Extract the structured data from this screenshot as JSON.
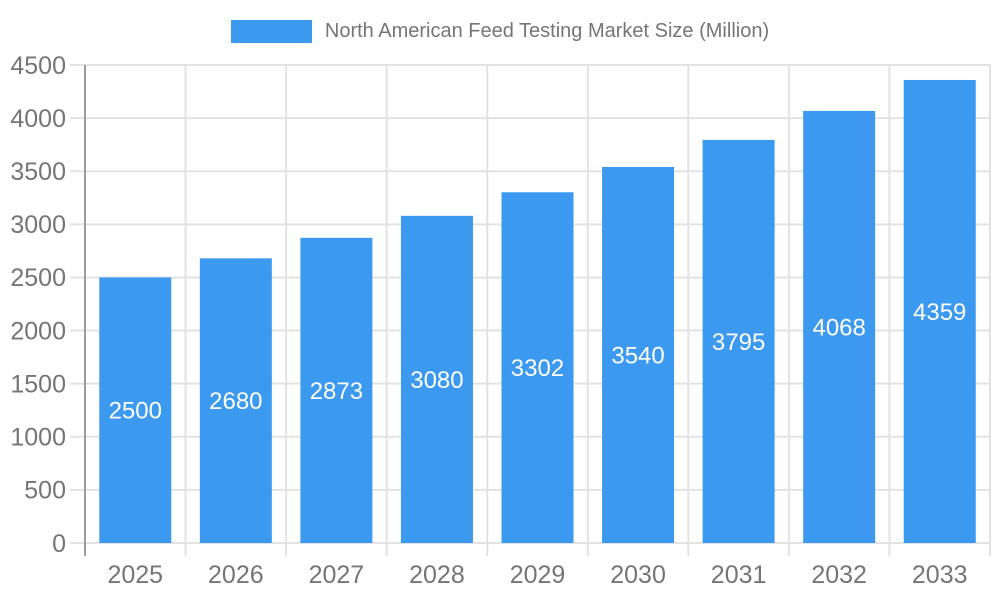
{
  "legend": {
    "label": "North American Feed Testing Market Size (Million)",
    "swatch_color": "#3b9af0",
    "text_color": "#757575"
  },
  "chart_data": {
    "type": "bar",
    "title": "North American Feed Testing Market Size (Million)",
    "series_name": "North American Feed Testing Market Size (Million)",
    "categories": [
      "2025",
      "2026",
      "2027",
      "2028",
      "2029",
      "2030",
      "2031",
      "2032",
      "2033"
    ],
    "values": [
      2500,
      2680,
      2873,
      3080,
      3302,
      3540,
      3795,
      4068,
      4359
    ],
    "bar_value_labels": [
      "2500",
      "2680",
      "2873",
      "3080",
      "3302",
      "3540",
      "3795",
      "4068",
      "4359"
    ],
    "xlabel": "",
    "ylabel": "",
    "ylim": [
      0,
      4500
    ],
    "ytick_step": 500,
    "yticks": [
      0,
      500,
      1000,
      1500,
      2000,
      2500,
      3000,
      3500,
      4000,
      4500
    ],
    "grid": true,
    "legend_position": "top",
    "bar_color": "#3b9af0",
    "bar_label_color": "#ffffff",
    "axis_label_color": "#757575",
    "gridline_color": "#e2e2e2",
    "axis_line_color": "#9b9b9b"
  }
}
